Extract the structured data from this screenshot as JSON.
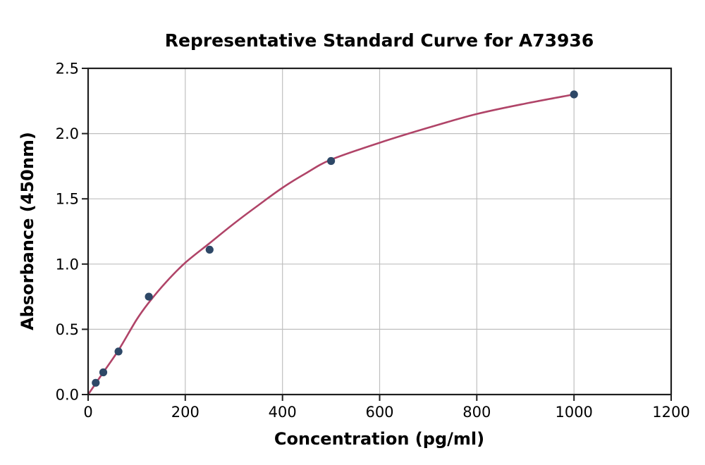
{
  "chart_data": {
    "type": "scatter",
    "title": "Representative Standard Curve for A73936",
    "xlabel": "Concentration (pg/ml)",
    "ylabel": "Absorbance (450nm)",
    "xlim": [
      0,
      1200
    ],
    "ylim": [
      0.0,
      2.5
    ],
    "x_ticks": [
      0,
      200,
      400,
      600,
      800,
      1000,
      1200
    ],
    "x_tick_labels": [
      "0",
      "200",
      "400",
      "600",
      "800",
      "1000",
      "1200"
    ],
    "y_ticks": [
      0.0,
      0.5,
      1.0,
      1.5,
      2.0,
      2.5
    ],
    "y_tick_labels": [
      "0.0",
      "0.5",
      "1.0",
      "1.5",
      "2.0",
      "2.5"
    ],
    "grid": true,
    "legend": "none",
    "series": [
      {
        "name": "standard-points",
        "type": "scatter",
        "color": "#2e4867",
        "points": [
          [
            15.6,
            0.09
          ],
          [
            31.25,
            0.17
          ],
          [
            62.5,
            0.33
          ],
          [
            125,
            0.75
          ],
          [
            250,
            1.11
          ],
          [
            500,
            1.79
          ],
          [
            1000,
            2.3
          ]
        ]
      },
      {
        "name": "fitted-curve",
        "type": "line",
        "color": "#b04468",
        "points": [
          [
            0,
            0.0
          ],
          [
            15.6,
            0.085
          ],
          [
            31.25,
            0.17
          ],
          [
            62.5,
            0.34
          ],
          [
            100,
            0.575
          ],
          [
            125,
            0.705
          ],
          [
            160,
            0.86
          ],
          [
            200,
            1.01
          ],
          [
            250,
            1.16
          ],
          [
            300,
            1.31
          ],
          [
            350,
            1.45
          ],
          [
            400,
            1.585
          ],
          [
            450,
            1.7
          ],
          [
            500,
            1.8
          ],
          [
            600,
            1.93
          ],
          [
            700,
            2.045
          ],
          [
            800,
            2.15
          ],
          [
            900,
            2.23
          ],
          [
            1000,
            2.3
          ]
        ]
      }
    ],
    "colors": {
      "point": "#2e4867",
      "curve": "#b04468",
      "grid": "#bfbfbf",
      "spine": "#1f1f1f",
      "text": "#000000",
      "background": "#ffffff"
    }
  }
}
